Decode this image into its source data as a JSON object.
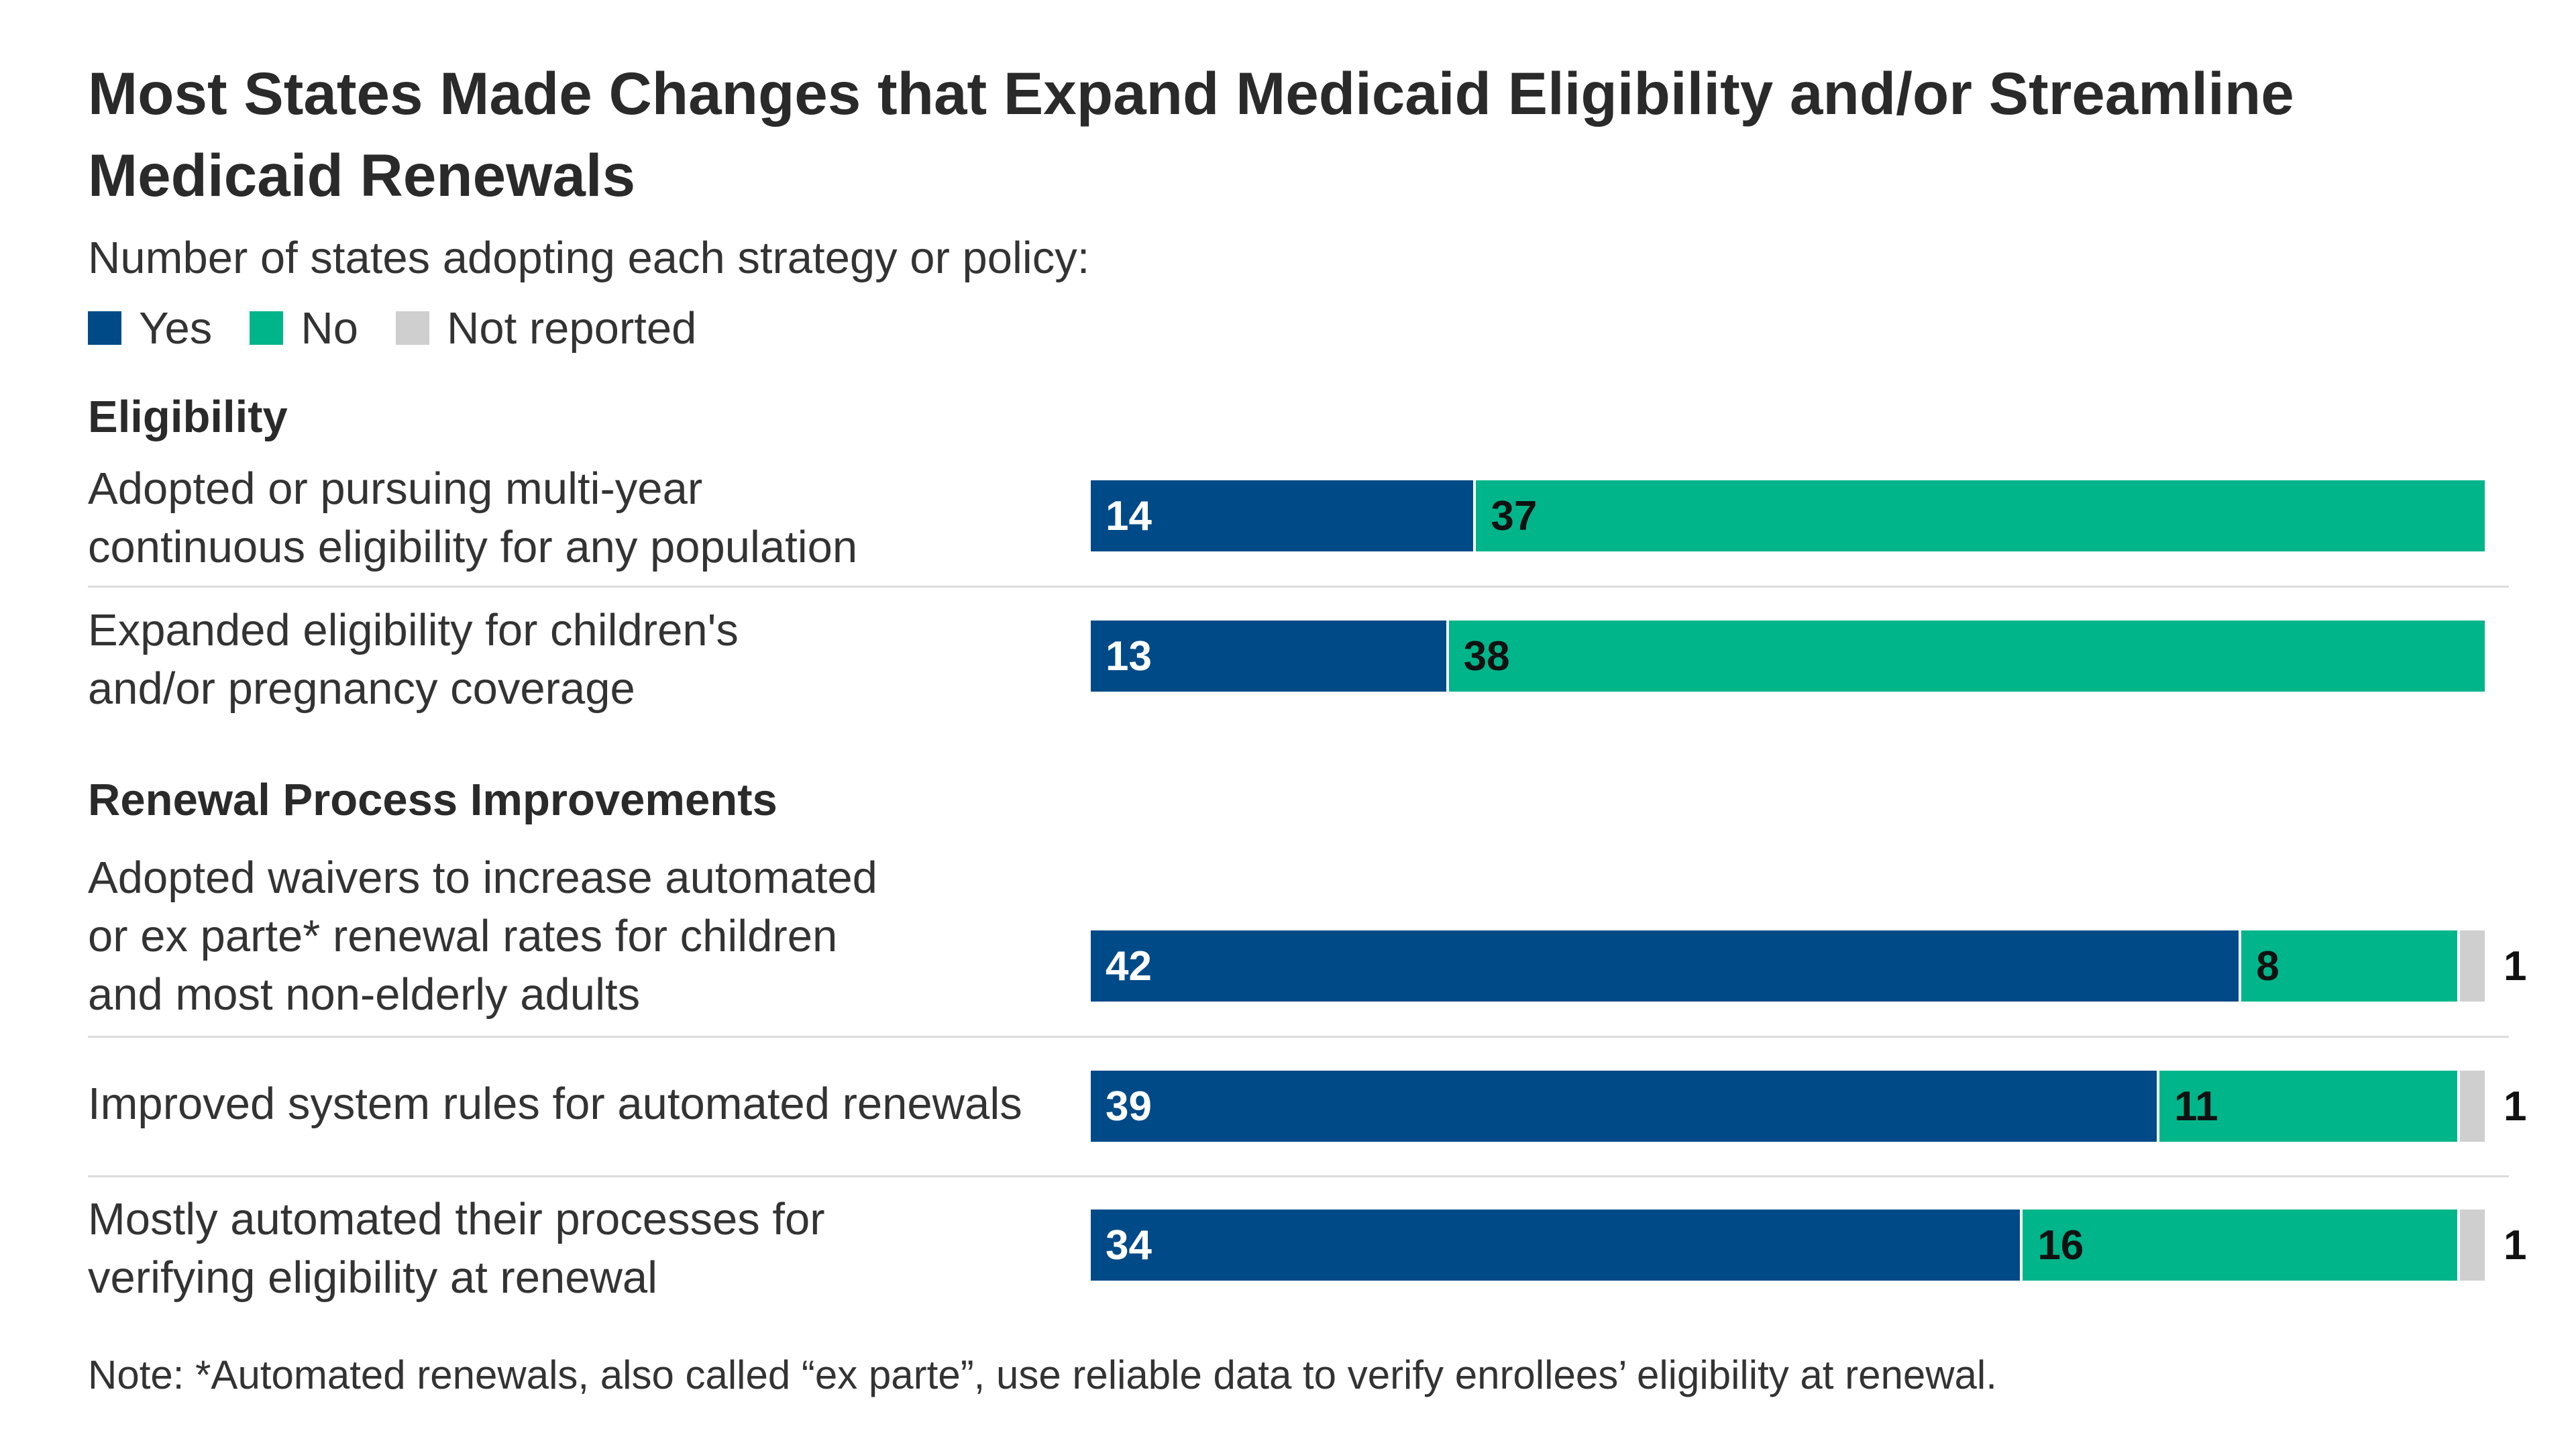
{
  "colors": {
    "yes": "#004a87",
    "no": "#00b58a",
    "not_reported": "#cfcfcf"
  },
  "chart_data": {
    "type": "bar",
    "orientation": "horizontal",
    "stacked": true,
    "title": "Most States Made Changes that Expand Medicaid Eligibility and/or Streamline Medicaid Renewals",
    "subtitle": "Number of states adopting each strategy or policy:",
    "legend": [
      {
        "name": "Yes",
        "color": "#004a87"
      },
      {
        "name": "No",
        "color": "#00b58a"
      },
      {
        "name": "Not reported",
        "color": "#cfcfcf"
      }
    ],
    "total": 51,
    "series_names": [
      "Yes",
      "No",
      "Not reported"
    ],
    "sections": [
      {
        "title": "Eligibility",
        "rows": [
          {
            "label_lines": [
              "Adopted or pursuing multi-year",
              "continuous eligibility for any population"
            ],
            "yes": 14,
            "no": 37,
            "not_reported": 0
          },
          {
            "label_lines": [
              "Expanded eligibility for children's",
              "and/or pregnancy coverage"
            ],
            "yes": 13,
            "no": 38,
            "not_reported": 0
          }
        ]
      },
      {
        "title": "Renewal  Process Improvements",
        "rows": [
          {
            "label_lines": [
              "Adopted waivers to increase automated",
              "or ex parte* renewal rates for children",
              "and most non-elderly adults"
            ],
            "yes": 42,
            "no": 8,
            "not_reported": 1
          },
          {
            "label_lines": [
              "Improved system rules for automated renewals"
            ],
            "yes": 39,
            "no": 11,
            "not_reported": 1
          },
          {
            "label_lines": [
              "Mostly automated their processes for",
              "verifying eligibility at renewal"
            ],
            "yes": 34,
            "no": 16,
            "not_reported": 1
          }
        ]
      }
    ],
    "note": "Note: *Automated renewals, also called “ex parte”, use reliable data to verify enrollees’ eligibility at renewal."
  }
}
